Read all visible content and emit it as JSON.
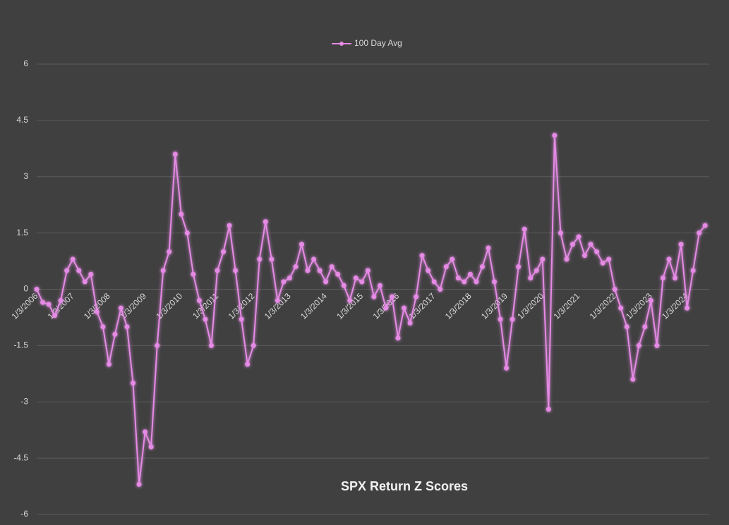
{
  "chart_data": {
    "type": "line",
    "title": "SPX Return Z Scores",
    "categories": [
      "1/3/2006",
      null,
      null,
      null,
      null,
      null,
      "1/3/2007",
      null,
      null,
      null,
      null,
      null,
      "1/3/2008",
      null,
      null,
      null,
      null,
      null,
      "1/3/2009",
      null,
      null,
      null,
      null,
      null,
      "1/3/2010",
      null,
      null,
      null,
      null,
      null,
      "1/3/2011",
      null,
      null,
      null,
      null,
      null,
      "1/3/2012",
      null,
      null,
      null,
      null,
      null,
      "1/3/2013",
      null,
      null,
      null,
      null,
      null,
      "1/3/2014",
      null,
      null,
      null,
      null,
      null,
      "1/3/2015",
      null,
      null,
      null,
      null,
      null,
      "1/3/2016",
      null,
      null,
      null,
      null,
      null,
      "1/3/2017",
      null,
      null,
      null,
      null,
      null,
      "1/3/2018",
      null,
      null,
      null,
      null,
      null,
      "1/3/2019",
      null,
      null,
      null,
      null,
      null,
      "1/3/2020",
      null,
      null,
      null,
      null,
      null,
      "1/3/2021",
      null,
      null,
      null,
      null,
      null,
      "1/3/2022",
      null,
      null,
      null,
      null,
      null,
      "1/3/2023",
      null,
      null,
      null,
      null,
      null,
      "1/3/2024",
      null,
      null,
      null
    ],
    "series": [
      {
        "name": "100 Day Avg",
        "color": "#e58ae5",
        "values": [
          0,
          -0.35,
          -0.4,
          -0.7,
          -0.3,
          0.5,
          0.8,
          0.5,
          0.2,
          0.4,
          -0.6,
          -1.0,
          -2.0,
          -1.2,
          -0.5,
          -1.0,
          -2.5,
          -5.2,
          -3.8,
          -4.2,
          -1.5,
          0.5,
          1.0,
          3.6,
          2.0,
          1.5,
          0.4,
          -0.3,
          -0.8,
          -1.5,
          0.5,
          1.0,
          1.7,
          0.5,
          -0.8,
          -2.0,
          -1.5,
          0.8,
          1.8,
          0.8,
          -0.3,
          0.2,
          0.3,
          0.6,
          1.2,
          0.5,
          0.8,
          0.5,
          0.2,
          0.6,
          0.4,
          0.1,
          -0.3,
          0.3,
          0.2,
          0.5,
          -0.2,
          0.1,
          -0.5,
          -0.2,
          -1.3,
          -0.5,
          -0.9,
          -0.2,
          0.9,
          0.5,
          0.2,
          0.0,
          0.6,
          0.8,
          0.3,
          0.2,
          0.4,
          0.2,
          0.6,
          1.1,
          0.2,
          -0.8,
          -2.1,
          -0.8,
          0.6,
          1.6,
          0.3,
          0.5,
          0.8,
          -3.2,
          4.1,
          1.5,
          0.8,
          1.2,
          1.4,
          0.9,
          1.2,
          1.0,
          0.7,
          0.8,
          0.0,
          -0.5,
          -1.0,
          -2.4,
          -1.5,
          -1.0,
          -0.3,
          -1.5,
          0.3,
          0.8,
          0.3,
          1.2,
          -0.5,
          0.5,
          1.5,
          1.7
        ]
      }
    ],
    "ylim": [
      -6,
      6
    ],
    "yticks": [
      -6,
      -4.5,
      -3,
      -1.5,
      0,
      1.5,
      3,
      4.5,
      6
    ],
    "grid": true,
    "legend": "top"
  }
}
